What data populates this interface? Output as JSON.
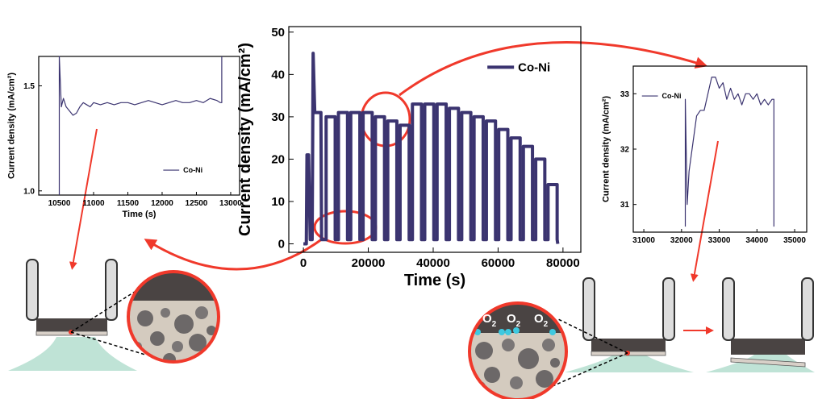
{
  "chart_data": [
    {
      "type": "line",
      "x_label": "Time (s)",
      "y_label": "Current density (mA/cm²)",
      "xlim": [
        -4500,
        85500
      ],
      "ylim": [
        -2,
        51.3
      ],
      "xticks": [
        0,
        20000,
        40000,
        60000,
        80000
      ],
      "yticks": [
        0,
        10,
        20,
        30,
        40,
        50
      ],
      "legend": "upper right",
      "x": [
        0,
        900,
        1100,
        1600,
        2100,
        2700,
        3000,
        3500,
        5400,
        5600,
        7000,
        7000,
        9800,
        9800,
        10800,
        10800,
        13600,
        13600,
        14600,
        14600,
        17400,
        17400,
        18400,
        18400,
        21200,
        21200,
        22200,
        22200,
        25000,
        25000,
        26000,
        26000,
        28800,
        28800,
        29800,
        29800,
        32600,
        32600,
        33600,
        33600,
        36400,
        36400,
        37400,
        37400,
        40200,
        40200,
        41200,
        41200,
        44000,
        44000,
        45000,
        45000,
        47800,
        47800,
        48800,
        48800,
        51600,
        51600,
        52600,
        52600,
        55400,
        55400,
        56400,
        56400,
        59200,
        59200,
        60200,
        60200,
        63000,
        63000,
        64000,
        64000,
        66800,
        66800,
        67800,
        67800,
        70600,
        70600,
        71600,
        71600,
        74400,
        74400,
        75400,
        75400,
        78200,
        78200,
        78400
      ],
      "series": [
        {
          "name": "Co-Ni",
          "color": "#3b3470",
          "values": [
            0,
            0,
            21,
            21,
            1,
            1,
            45,
            31,
            31,
            1,
            1,
            30,
            30,
            1,
            1,
            31,
            31,
            1,
            1,
            31,
            31,
            1,
            1,
            31,
            31,
            1,
            1,
            30,
            30,
            1,
            1,
            29,
            29,
            1,
            1,
            28,
            28,
            1,
            1,
            33,
            33,
            1,
            1,
            33,
            33,
            1,
            1,
            33,
            33,
            1,
            1,
            32,
            32,
            1,
            1,
            31,
            31,
            1,
            1,
            30,
            30,
            1,
            1,
            29,
            29,
            1,
            1,
            27,
            27,
            1,
            1,
            25,
            25,
            1,
            1,
            23,
            23,
            1,
            1,
            20,
            20,
            1,
            1,
            14,
            14,
            1,
            0
          ]
        }
      ]
    },
    {
      "type": "line",
      "x_label": "Time (s)",
      "y_label": "Current density (mA/cm²)",
      "xlim": [
        10200,
        13130
      ],
      "ylim": [
        0.98,
        1.64
      ],
      "xticks": [
        10500,
        11000,
        11500,
        12000,
        12500,
        13000
      ],
      "yticks": [
        {
          "value": 1,
          "label": "1.0"
        },
        1.5
      ],
      "legend": "lower right",
      "x": [
        10500,
        10500,
        10530,
        10560,
        10600,
        10650,
        10700,
        10750,
        10800,
        10850,
        10900,
        10950,
        11000,
        11100,
        11200,
        11300,
        11400,
        11500,
        11600,
        11700,
        11800,
        11900,
        12000,
        12100,
        12200,
        12300,
        12400,
        12500,
        12600,
        12700,
        12800,
        12850,
        12870,
        12870
      ],
      "series": [
        {
          "name": "Co-Ni",
          "color": "#3b3470",
          "values": [
            0.98,
            1.64,
            1.4,
            1.44,
            1.4,
            1.38,
            1.36,
            1.37,
            1.4,
            1.42,
            1.41,
            1.4,
            1.42,
            1.41,
            1.42,
            1.41,
            1.42,
            1.42,
            1.41,
            1.42,
            1.43,
            1.42,
            1.41,
            1.42,
            1.43,
            1.42,
            1.42,
            1.43,
            1.42,
            1.44,
            1.43,
            1.42,
            1.42,
            1.64
          ]
        }
      ]
    },
    {
      "type": "line",
      "y_label": "Current density (mA/cm²)",
      "xlim": [
        30720,
        35320
      ],
      "ylim": [
        30.5,
        33.5
      ],
      "xticks": [
        31000,
        32000,
        33000,
        34000,
        35000
      ],
      "yticks": [
        31,
        32,
        33
      ],
      "legend": "upper left",
      "x": [
        32100,
        32100,
        32150,
        32200,
        32300,
        32400,
        32500,
        32600,
        32700,
        32800,
        32900,
        33000,
        33100,
        33200,
        33300,
        33400,
        33500,
        33600,
        33700,
        33800,
        33900,
        34000,
        34100,
        34200,
        34300,
        34400,
        34450,
        34450
      ],
      "series": [
        {
          "name": "Co-Ni",
          "color": "#3b3470",
          "values": [
            30.6,
            32.9,
            31.0,
            31.6,
            32.1,
            32.6,
            32.7,
            32.7,
            33.0,
            33.3,
            33.3,
            33.1,
            33.2,
            32.9,
            33.1,
            32.9,
            33.0,
            32.8,
            33.0,
            33.0,
            32.9,
            33.0,
            32.8,
            32.9,
            32.8,
            32.9,
            32.9,
            30.6
          ]
        }
      ]
    }
  ],
  "o2_labels": [
    {
      "text": "O",
      "sub": "2"
    },
    {
      "text": "O",
      "sub": "2"
    },
    {
      "text": "O",
      "sub": "2"
    }
  ]
}
